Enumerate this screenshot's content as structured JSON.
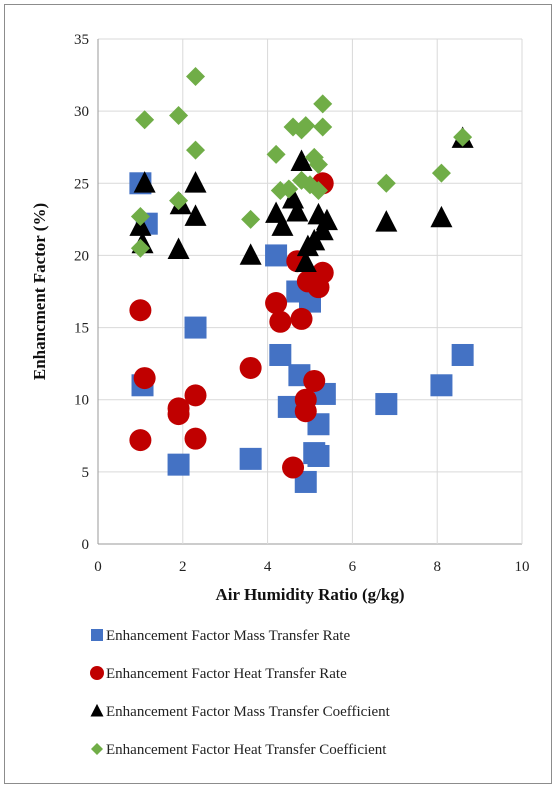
{
  "chart_data": {
    "type": "scatter",
    "title": "",
    "xlabel": "Air Humidity Ratio (g/kg)",
    "ylabel": "Enhancment Factor (%)",
    "xlim": [
      0,
      10
    ],
    "ylim": [
      0,
      35
    ],
    "xticks": [
      0,
      2,
      4,
      6,
      8,
      10
    ],
    "yticks": [
      0,
      5,
      10,
      15,
      20,
      25,
      30,
      35
    ],
    "grid": true,
    "legend": "bottom",
    "series": [
      {
        "name": "Enhancement Factor Mass Transfer Rate",
        "marker": "square",
        "color": "#4472c4",
        "points": [
          [
            1.0,
            25.0
          ],
          [
            1.05,
            11.0
          ],
          [
            1.15,
            22.2
          ],
          [
            1.9,
            5.5
          ],
          [
            2.3,
            15.0
          ],
          [
            3.6,
            5.9
          ],
          [
            4.2,
            20.0
          ],
          [
            4.3,
            13.1
          ],
          [
            4.5,
            9.5
          ],
          [
            4.7,
            17.5
          ],
          [
            4.75,
            11.7
          ],
          [
            4.9,
            4.3
          ],
          [
            5.0,
            16.8
          ],
          [
            5.1,
            6.3
          ],
          [
            5.2,
            6.1
          ],
          [
            5.2,
            8.3
          ],
          [
            5.35,
            10.4
          ],
          [
            6.8,
            9.7
          ],
          [
            8.1,
            11.0
          ],
          [
            8.6,
            13.1
          ]
        ]
      },
      {
        "name": "Enhancement Factor Heat Transfer Rate",
        "marker": "circle",
        "color": "#c00000",
        "points": [
          [
            1.0,
            16.2
          ],
          [
            1.0,
            7.2
          ],
          [
            1.1,
            11.5
          ],
          [
            1.9,
            9.4
          ],
          [
            1.9,
            9.0
          ],
          [
            2.3,
            10.3
          ],
          [
            2.3,
            7.3
          ],
          [
            3.6,
            12.2
          ],
          [
            4.2,
            16.7
          ],
          [
            4.3,
            15.4
          ],
          [
            4.6,
            5.3
          ],
          [
            4.7,
            19.6
          ],
          [
            4.8,
            15.6
          ],
          [
            4.9,
            10.0
          ],
          [
            4.9,
            9.2
          ],
          [
            4.95,
            18.2
          ],
          [
            5.1,
            11.3
          ],
          [
            5.2,
            17.8
          ],
          [
            5.3,
            18.8
          ],
          [
            5.3,
            25.0
          ]
        ]
      },
      {
        "name": "Enhancement Factor Mass Transfer Coefficient",
        "marker": "triangle",
        "color": "#000000",
        "points": [
          [
            1.0,
            22.0
          ],
          [
            1.05,
            20.8
          ],
          [
            1.1,
            25.0
          ],
          [
            1.9,
            20.4
          ],
          [
            1.95,
            23.5
          ],
          [
            2.3,
            25.0
          ],
          [
            2.3,
            22.7
          ],
          [
            3.6,
            20.0
          ],
          [
            4.2,
            22.9
          ],
          [
            4.35,
            22.0
          ],
          [
            4.6,
            23.9
          ],
          [
            4.7,
            23.0
          ],
          [
            4.8,
            26.5
          ],
          [
            4.9,
            19.5
          ],
          [
            4.95,
            20.6
          ],
          [
            5.1,
            21.0
          ],
          [
            5.2,
            22.8
          ],
          [
            5.3,
            21.7
          ],
          [
            5.4,
            22.4
          ],
          [
            6.8,
            22.3
          ],
          [
            8.1,
            22.6
          ],
          [
            8.6,
            28.1
          ]
        ]
      },
      {
        "name": "Enhancement Factor Heat Transfer Coefficient",
        "marker": "diamond",
        "color": "#70ad47",
        "points": [
          [
            1.0,
            22.7
          ],
          [
            1.0,
            20.5
          ],
          [
            1.1,
            29.4
          ],
          [
            1.9,
            29.7
          ],
          [
            1.9,
            23.8
          ],
          [
            2.3,
            32.4
          ],
          [
            2.3,
            27.3
          ],
          [
            3.6,
            22.5
          ],
          [
            4.2,
            27.0
          ],
          [
            4.3,
            24.5
          ],
          [
            4.5,
            24.6
          ],
          [
            4.6,
            28.9
          ],
          [
            4.8,
            28.7
          ],
          [
            4.8,
            25.2
          ],
          [
            4.9,
            29.0
          ],
          [
            5.0,
            24.9
          ],
          [
            5.1,
            26.8
          ],
          [
            5.2,
            24.5
          ],
          [
            5.2,
            26.3
          ],
          [
            5.3,
            30.5
          ],
          [
            5.3,
            28.9
          ],
          [
            6.8,
            25.0
          ],
          [
            8.1,
            25.7
          ],
          [
            8.6,
            28.2
          ]
        ]
      }
    ]
  }
}
